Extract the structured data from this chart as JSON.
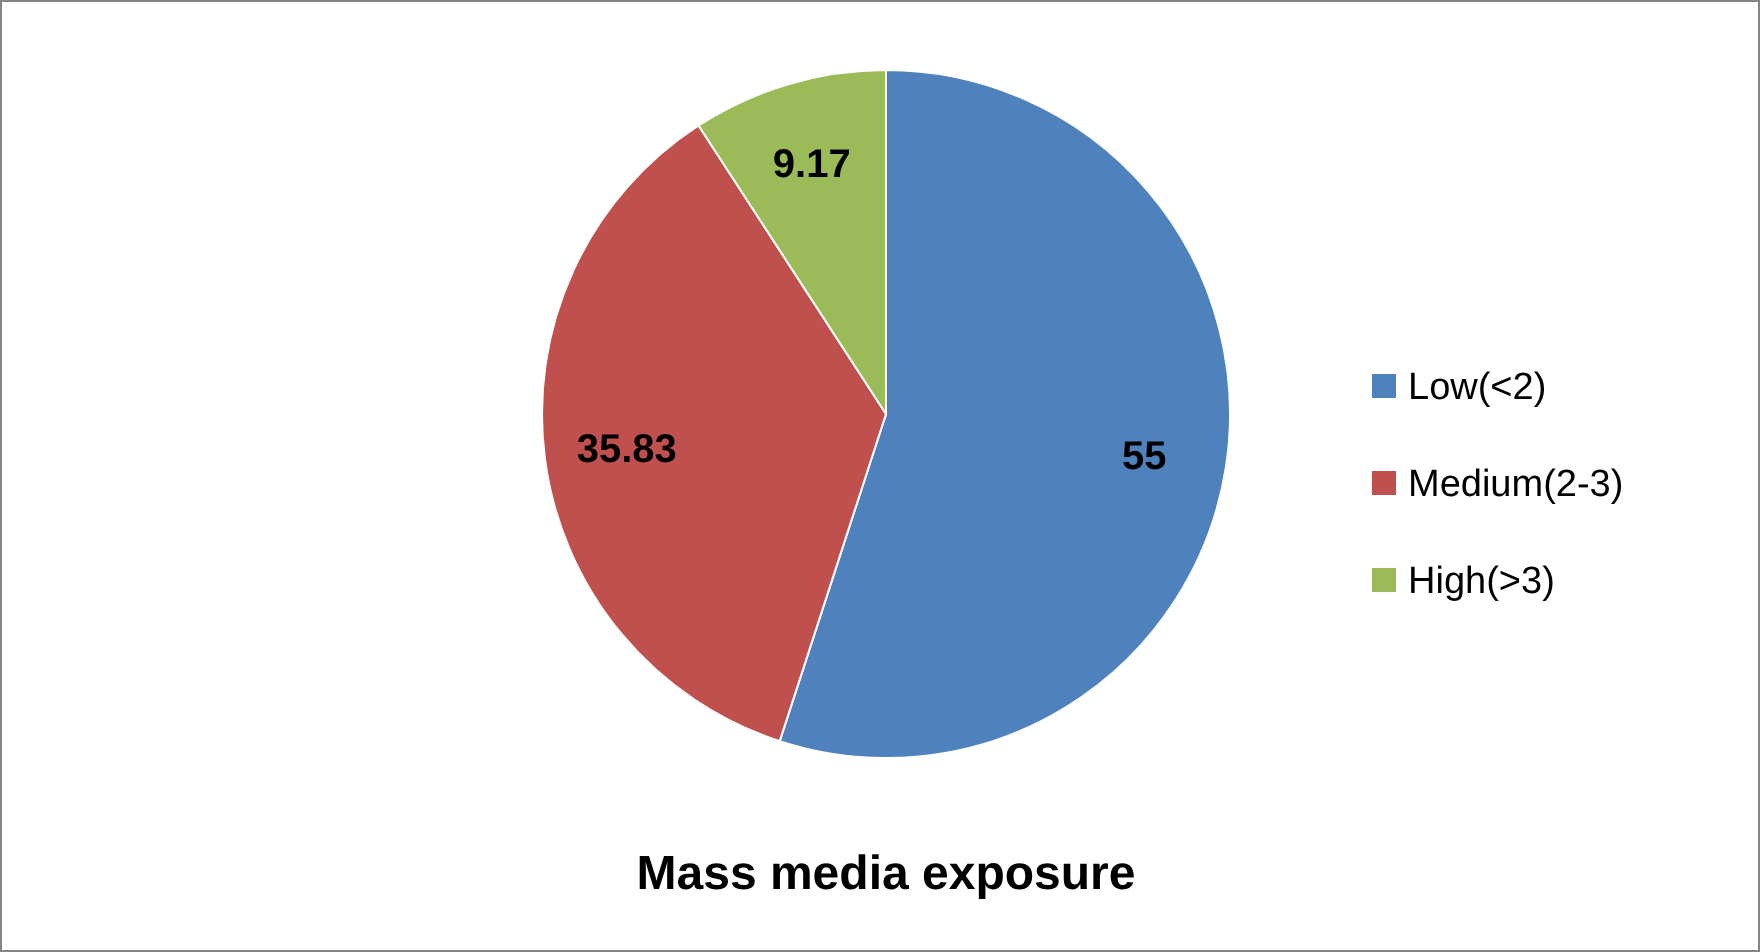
{
  "chart_data": {
    "type": "pie",
    "title": "Mass media exposure",
    "categories": [
      "Low(<2)",
      "Medium(2-3)",
      "High(>3)"
    ],
    "values": [
      55,
      35.83,
      9.17
    ],
    "colors": [
      "#4f81bd",
      "#c0504d",
      "#9bbb59"
    ],
    "data_labels": true,
    "legend": "right"
  }
}
